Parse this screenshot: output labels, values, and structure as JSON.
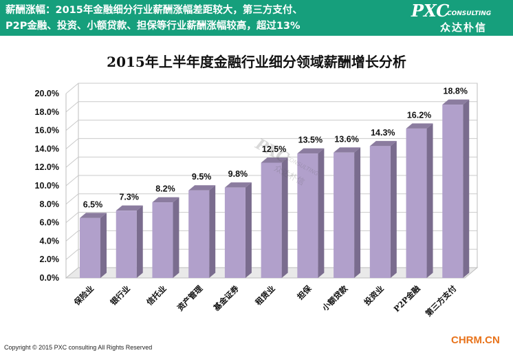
{
  "header": {
    "line1": "薪酬涨幅：2015年金融细分行业薪酬涨幅差距较大，第三方支付、",
    "line2": "P2P金融、投资、小额贷款、担保等行业薪酬涨幅较高，超过13%"
  },
  "logo": {
    "main": "PXC",
    "sub": "CONSULTING",
    "cn": "众达朴信"
  },
  "watermark": {
    "main": "PXC",
    "sub": "CONSULTING",
    "cn": "众达朴信"
  },
  "footer": {
    "copyright": "Copyright © 2015  PXC consulting All Rights Reserved",
    "site": "CHRM.CN"
  },
  "colors": {
    "header_bg": "#169f7c",
    "bar_front": "#b1a0cb",
    "bar_side": "#7a6c8e",
    "bar_top": "#8b7c9f",
    "site_text": "#e8731b"
  },
  "chart_data": {
    "type": "bar",
    "title": "2015年上半年度金融行业细分领域薪酬增长分析",
    "categories": [
      "保险业",
      "银行业",
      "信托业",
      "资产管理",
      "基金证券",
      "租赁业",
      "担保",
      "小额贷款",
      "投资业",
      "P2P金融",
      "第三方支付"
    ],
    "values": [
      6.5,
      7.3,
      8.2,
      9.5,
      9.8,
      12.5,
      13.5,
      13.6,
      14.3,
      16.2,
      18.8
    ],
    "labels": [
      "6.5%",
      "7.3%",
      "8.2%",
      "9.5%",
      "9.8%",
      "12.5%",
      "13.5%",
      "13.6%",
      "14.3%",
      "16.2%",
      "18.8%"
    ],
    "yticks": [
      "0.0%",
      "2.0%",
      "4.0%",
      "6.0%",
      "8.0%",
      "10.0%",
      "12.0%",
      "14.0%",
      "16.0%",
      "18.0%",
      "20.0%"
    ],
    "ylim": [
      0,
      20
    ],
    "grid": true,
    "legend": "none",
    "style": "3d"
  }
}
